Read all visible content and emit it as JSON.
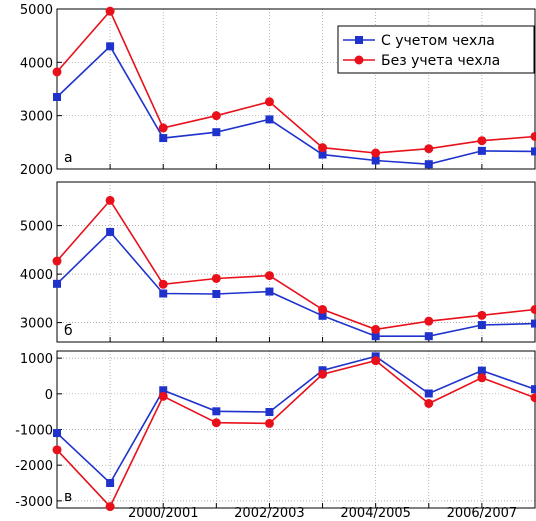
{
  "chart_data": [
    {
      "type": "line",
      "panel_label": "а",
      "ylim": [
        2000,
        5000
      ],
      "yticks": [
        2000,
        3000,
        4000,
        5000
      ],
      "grid": true,
      "legend_placement": "top-right",
      "series": [
        {
          "name": "С учетом чехла",
          "color": "#1f33cc",
          "marker": "square",
          "values": [
            3350,
            4300,
            2580,
            2690,
            2930,
            2270,
            2160,
            2090,
            2340,
            2330
          ]
        },
        {
          "name": "Без учета чехла",
          "color": "#e8101a",
          "marker": "circle",
          "values": [
            3820,
            4960,
            2770,
            3000,
            3260,
            2400,
            2300,
            2380,
            2530,
            2610
          ]
        }
      ]
    },
    {
      "type": "line",
      "panel_label": "б",
      "ylim": [
        2600,
        5900
      ],
      "yticks": [
        3000,
        4000,
        5000
      ],
      "grid": true,
      "series": [
        {
          "name": "С учетом чехла",
          "color": "#1f33cc",
          "marker": "square",
          "values": [
            3800,
            4870,
            3600,
            3590,
            3640,
            3140,
            2720,
            2720,
            2950,
            2980
          ]
        },
        {
          "name": "Без учета чехла",
          "color": "#e8101a",
          "marker": "circle",
          "values": [
            4270,
            5520,
            3790,
            3910,
            3970,
            3270,
            2860,
            3030,
            3150,
            3270
          ]
        }
      ]
    },
    {
      "type": "line",
      "panel_label": "в",
      "ylim": [
        -3200,
        1200
      ],
      "yticks": [
        -3000,
        -2000,
        -1000,
        0,
        1000
      ],
      "grid": true,
      "series": [
        {
          "name": "С учетом чехла",
          "color": "#1f33cc",
          "marker": "square",
          "values": [
            -1100,
            -2500,
            100,
            -490,
            -510,
            660,
            1050,
            10,
            650,
            130
          ]
        },
        {
          "name": "Без учета чехла",
          "color": "#e8101a",
          "marker": "circle",
          "values": [
            -1570,
            -3160,
            -70,
            -810,
            -830,
            550,
            930,
            -270,
            450,
            -110
          ]
        }
      ]
    }
  ],
  "x_tick_labels": [
    {
      "index": 2,
      "label": "2000/2001"
    },
    {
      "index": 4,
      "label": "2002/2003"
    },
    {
      "index": 6,
      "label": "2004/2005"
    },
    {
      "index": 8,
      "label": "2006/2007"
    }
  ]
}
